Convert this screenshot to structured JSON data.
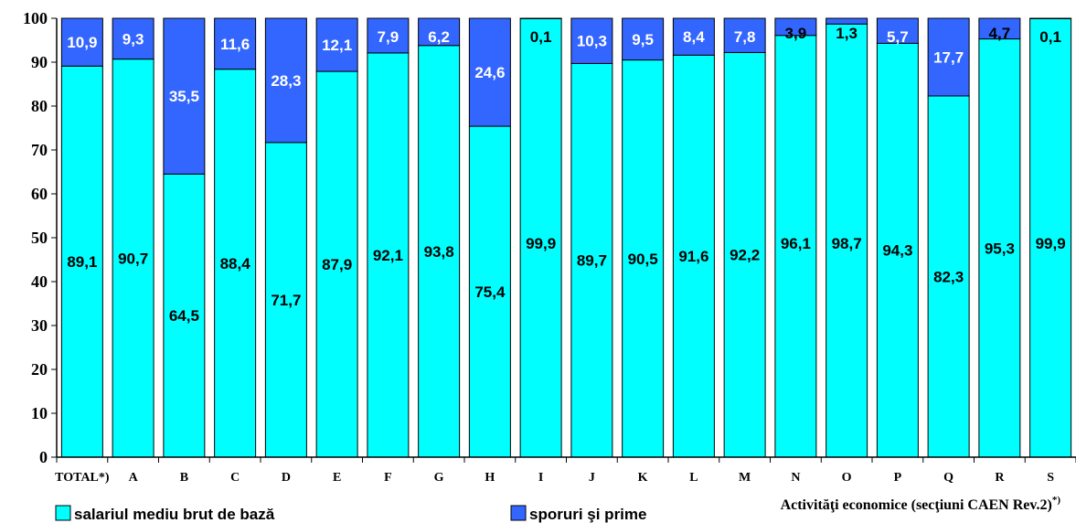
{
  "chart_data": {
    "type": "bar",
    "stacked": true,
    "categories": [
      "TOTAL*)",
      "A",
      "B",
      "C",
      "D",
      "E",
      "F",
      "G",
      "H",
      "I",
      "J",
      "K",
      "L",
      "M",
      "N",
      "O",
      "P",
      "Q",
      "R",
      "S"
    ],
    "series": [
      {
        "name": "salariul mediu brut de bază",
        "color": "#00ffff",
        "values": [
          89.1,
          90.7,
          64.5,
          88.4,
          71.7,
          87.9,
          92.1,
          93.8,
          75.4,
          99.9,
          89.7,
          90.5,
          91.6,
          92.2,
          96.1,
          98.7,
          94.3,
          82.3,
          95.3,
          99.9
        ],
        "labels": [
          "89,1",
          "90,7",
          "64,5",
          "88,4",
          "71,7",
          "87,9",
          "92,1",
          "93,8",
          "75,4",
          "99,9",
          "89,7",
          "90,5",
          "91,6",
          "92,2",
          "96,1",
          "98,7",
          "94,3",
          "82,3",
          "95,3",
          "99,9"
        ]
      },
      {
        "name": "sporuri şi prime",
        "color": "#3366ff",
        "values": [
          10.9,
          9.3,
          35.5,
          11.6,
          28.3,
          12.1,
          7.9,
          6.2,
          24.6,
          0.1,
          10.3,
          9.5,
          8.4,
          7.8,
          3.9,
          1.3,
          5.7,
          17.7,
          4.7,
          0.1
        ],
        "labels": [
          "10,9",
          "9,3",
          "35,5",
          "11,6",
          "28,3",
          "12,1",
          "7,9",
          "6,2",
          "24,6",
          "0,1",
          "10,3",
          "9,5",
          "8,4",
          "7,8",
          "3,9",
          "1,3",
          "5,7",
          "17,7",
          "4,7",
          "0,1"
        ]
      }
    ],
    "ylim": [
      0,
      100
    ],
    "yticks": [
      "0",
      "10",
      "20",
      "30",
      "40",
      "50",
      "60",
      "70",
      "80",
      "90",
      "100"
    ],
    "xlabel": "Activităţi economice (secţiuni CAEN Rev.2)",
    "xlabel_superscript": "*)",
    "ylabel": "",
    "grid": false,
    "legend_position": "bottom"
  }
}
